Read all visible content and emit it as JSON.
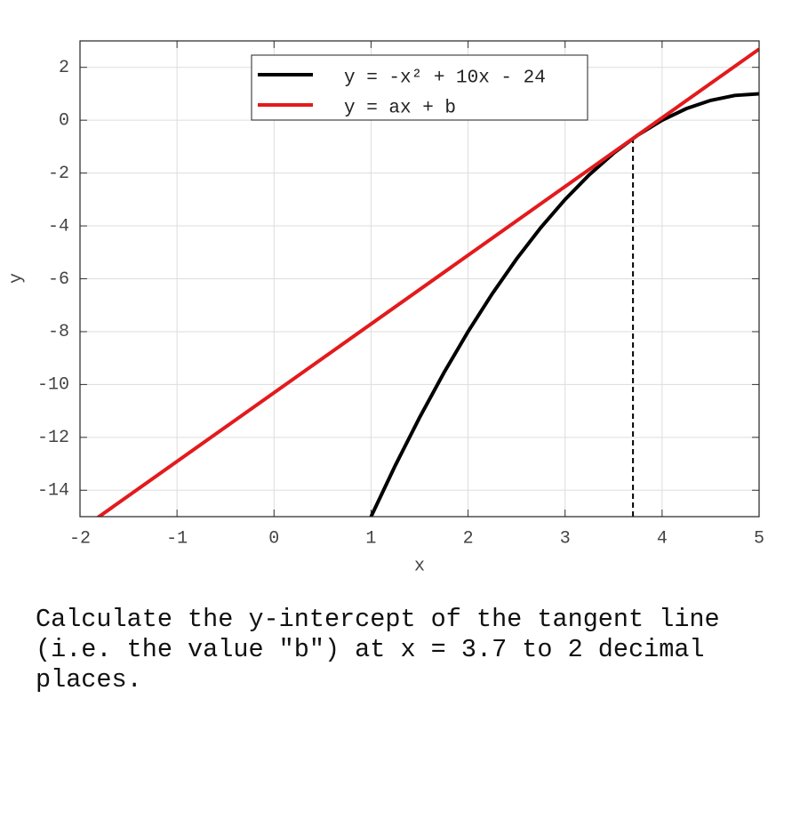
{
  "chart_data": {
    "type": "line",
    "xlabel": "x",
    "ylabel": "y",
    "xlim": [
      -2,
      5
    ],
    "ylim": [
      -15,
      3
    ],
    "xticks": [
      -2,
      -1,
      0,
      1,
      2,
      3,
      4,
      5
    ],
    "yticks": [
      -14,
      -12,
      -10,
      -8,
      -6,
      -4,
      -2,
      0,
      2
    ],
    "grid": true,
    "legend": "upper center",
    "series": [
      {
        "name": "y = -x² + 10x - 24",
        "color": "#000000",
        "x": [
          1,
          1.25,
          1.5,
          1.75,
          2,
          2.25,
          2.5,
          2.75,
          3,
          3.25,
          3.5,
          3.75,
          4,
          4.25,
          4.5,
          4.75,
          5
        ],
        "values": [
          -15,
          -13.0625,
          -11.25,
          -9.5625,
          -8,
          -6.5625,
          -5.25,
          -4.0625,
          -3,
          -2.0625,
          -1.25,
          -0.5625,
          0,
          0.4375,
          0.75,
          0.9375,
          1
        ]
      },
      {
        "name": "y = ax + b",
        "color": "#e31a1c",
        "x": [
          -2,
          5
        ],
        "values": [
          -15.51,
          2.69
        ]
      }
    ],
    "vline": {
      "x": 3.7,
      "y": -0.69
    }
  },
  "question": "Calculate the y-intercept of the tangent line (i.e. the value \"b\") at x = 3.7 to 2 decimal places."
}
